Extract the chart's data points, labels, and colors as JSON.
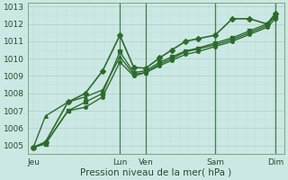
{
  "background_color": "#cce8e4",
  "grid_color_major": "#b0d4cf",
  "grid_color_minor": "#c0ddd9",
  "line_color": "#2d6b2d",
  "vline_color": "#4a7a4a",
  "ylabel_vals": [
    1005,
    1006,
    1007,
    1008,
    1009,
    1010,
    1011,
    1012,
    1013
  ],
  "ylim": [
    1004.5,
    1013.2
  ],
  "xlabel": "Pression niveau de la mer( hPa )",
  "x_day_positions": [
    0,
    5,
    6.5,
    10.5,
    14
  ],
  "x_day_labels": [
    "Jeu",
    "Lun",
    "Ven",
    "Sam",
    "Dim"
  ],
  "vline_positions": [
    5,
    6.5,
    10.5,
    14
  ],
  "xlim": [
    -0.3,
    14.5
  ],
  "series": [
    {
      "x": [
        0,
        0.7,
        2.0,
        3.0,
        4.0,
        5.0,
        5.8,
        6.5,
        7.3,
        8.0,
        8.8,
        9.5,
        10.5,
        11.5,
        12.5,
        13.5,
        14.0
      ],
      "y": [
        1004.9,
        1005.2,
        1007.5,
        1008.0,
        1009.3,
        1011.35,
        1009.5,
        1009.45,
        1010.05,
        1010.5,
        1011.0,
        1011.15,
        1011.35,
        1012.3,
        1012.3,
        1012.0,
        1012.6
      ],
      "marker": "D",
      "ms": 3,
      "lw": 1.2
    },
    {
      "x": [
        0,
        0.7,
        2.0,
        3.0,
        4.0,
        5.0,
        5.8,
        6.5,
        7.3,
        8.0,
        8.8,
        9.5,
        10.5,
        11.5,
        12.5,
        13.5,
        14.0
      ],
      "y": [
        1004.9,
        1006.7,
        1007.5,
        1007.8,
        1008.2,
        1010.1,
        1009.1,
        1009.2,
        1009.7,
        1010.0,
        1010.4,
        1010.55,
        1010.8,
        1011.1,
        1011.5,
        1011.9,
        1012.5
      ],
      "marker": "^",
      "ms": 2.5,
      "lw": 1.0
    },
    {
      "x": [
        0,
        0.7,
        2.0,
        3.0,
        4.0,
        5.0,
        5.8,
        6.5,
        7.3,
        8.0,
        8.8,
        9.5,
        10.5,
        11.5,
        12.5,
        13.5,
        14.0
      ],
      "y": [
        1004.9,
        1005.1,
        1007.0,
        1007.5,
        1008.0,
        1010.4,
        1009.2,
        1009.3,
        1009.8,
        1010.1,
        1010.45,
        1010.6,
        1010.9,
        1011.2,
        1011.6,
        1012.0,
        1012.4
      ],
      "marker": "s",
      "ms": 2.5,
      "lw": 1.0
    },
    {
      "x": [
        0,
        0.7,
        2.0,
        3.0,
        4.0,
        5.0,
        5.8,
        6.5,
        7.3,
        8.0,
        8.8,
        9.5,
        10.5,
        11.5,
        12.5,
        13.5,
        14.0
      ],
      "y": [
        1004.9,
        1005.1,
        1007.0,
        1007.2,
        1007.8,
        1009.8,
        1009.0,
        1009.2,
        1009.6,
        1009.9,
        1010.25,
        1010.4,
        1010.7,
        1011.0,
        1011.4,
        1011.8,
        1012.3
      ],
      "marker": "o",
      "ms": 2.5,
      "lw": 1.0
    }
  ]
}
